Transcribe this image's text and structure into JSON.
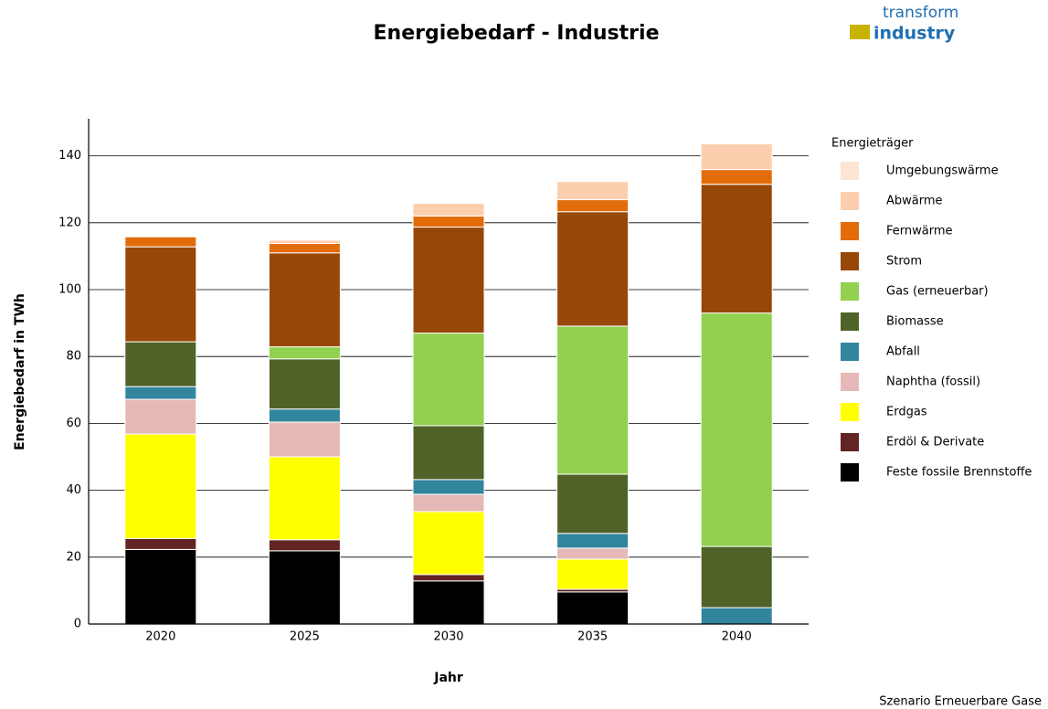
{
  "logo": {
    "line1": "transform",
    "line2": "industry"
  },
  "footer": "Szenario Erneuerbare Gase",
  "chart_data": {
    "type": "stacked_bar",
    "title": "Energiebedarf - Industrie",
    "x_label": "Jahr",
    "y_label": "Energiebedarf in TWh",
    "legend_title": "Energieträger",
    "categories": [
      "2020",
      "2025",
      "2030",
      "2035",
      "2040"
    ],
    "ylim": [
      0,
      150
    ],
    "yticks": [
      0,
      20,
      40,
      60,
      80,
      100,
      120,
      140
    ],
    "grid": true,
    "series": [
      {
        "name": "Feste fossile Brennstoffe",
        "color": "#000000",
        "values": [
          22.3,
          21.9,
          12.9,
          9.6,
          0
        ]
      },
      {
        "name": "Erdöl & Derivate",
        "color": "#632523",
        "values": [
          3.3,
          3.3,
          1.9,
          0.8,
          0
        ]
      },
      {
        "name": "Erdgas",
        "color": "#ffff00",
        "values": [
          31.2,
          24.8,
          18.8,
          9.0,
          0
        ]
      },
      {
        "name": "Naphtha (fossil)",
        "color": "#e6b9b8",
        "values": [
          10.4,
          10.4,
          5.2,
          3.3,
          0
        ]
      },
      {
        "name": "Abfall",
        "color": "#31859c",
        "values": [
          3.8,
          3.9,
          4.4,
          4.4,
          4.9
        ]
      },
      {
        "name": "Biomasse",
        "color": "#4f6228",
        "values": [
          13.4,
          15.0,
          16.1,
          17.7,
          18.3
        ]
      },
      {
        "name": "Gas (erneuerbar)",
        "color": "#92d050",
        "values": [
          0,
          3.6,
          27.7,
          44.3,
          69.8
        ]
      },
      {
        "name": "Strom",
        "color": "#974706",
        "values": [
          28.4,
          28.1,
          31.7,
          34.2,
          38.5
        ]
      },
      {
        "name": "Fernwärme",
        "color": "#e36c0a",
        "values": [
          3.0,
          2.8,
          3.3,
          3.6,
          4.4
        ]
      },
      {
        "name": "Abwärme",
        "color": "#fbcfae",
        "values": [
          0,
          1.0,
          3.8,
          5.4,
          7.7
        ]
      },
      {
        "name": "Umgebungswärme",
        "color": "#fde4d4",
        "values": [
          0,
          0,
          0,
          0,
          0
        ]
      }
    ]
  }
}
